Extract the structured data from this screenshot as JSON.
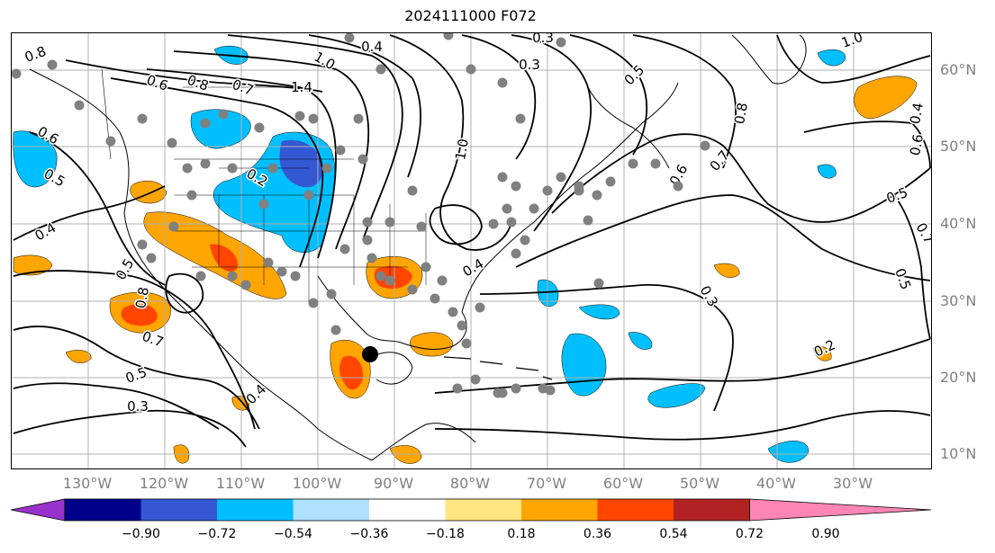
{
  "title": "2024111000 F072",
  "lat_labels": [
    "60°N",
    "50°N",
    "40°N",
    "30°N",
    "20°N",
    "10°N"
  ],
  "lon_labels": [
    "130°W",
    "120°W",
    "110°W",
    "100°W",
    "90°W",
    "80°W",
    "70°W",
    "60°W",
    "50°W",
    "40°W",
    "30°W"
  ],
  "colorbar": {
    "tick_labels": [
      "−0.90",
      "−0.72",
      "−0.54",
      "−0.36",
      "−0.18",
      "0.18",
      "0.36",
      "0.54",
      "0.72",
      "0.90"
    ],
    "colors": [
      "#9932cc",
      "#00008b",
      "#3458d4",
      "#00bfff",
      "#aee0ff",
      "#ffffff",
      "#ffe680",
      "#ffa500",
      "#ff4500",
      "#b22222",
      "#ff85b4"
    ]
  },
  "contour_labels": [
    "0.8",
    "0.6",
    "0.5",
    "0.4",
    "0.5",
    "0.8",
    "0.7",
    "0.5",
    "0.3",
    "0.4",
    "1.4",
    "0.8",
    "0.6",
    "1.0",
    "0.7",
    "0.4",
    "0.3",
    "0.5",
    "1.0",
    "0.2",
    "0.3",
    "0.5",
    "0.6",
    "0.7",
    "0.8",
    "1.0",
    "0.4",
    "0.6",
    "0.7",
    "0.5",
    "0.2",
    "0.3",
    "0.4"
  ],
  "colors": {
    "contour": "#000000",
    "station_dot": "#808080",
    "storm_center": "#000000",
    "grid": "#b0b0b0"
  }
}
